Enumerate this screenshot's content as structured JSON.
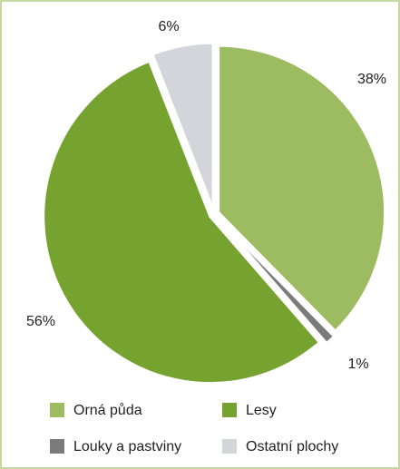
{
  "chart_data": {
    "type": "pie",
    "categories": [
      "Orná půda",
      "Louky a pastviny",
      "Lesy",
      "Ostatní plochy"
    ],
    "values": [
      38,
      1,
      56,
      6
    ],
    "value_labels": [
      "38%",
      "1%",
      "56%",
      "6%"
    ],
    "colors": [
      "#9dbb61",
      "#7b7b7b",
      "#76a22f",
      "#d3d5da"
    ],
    "legend": "bottom"
  }
}
